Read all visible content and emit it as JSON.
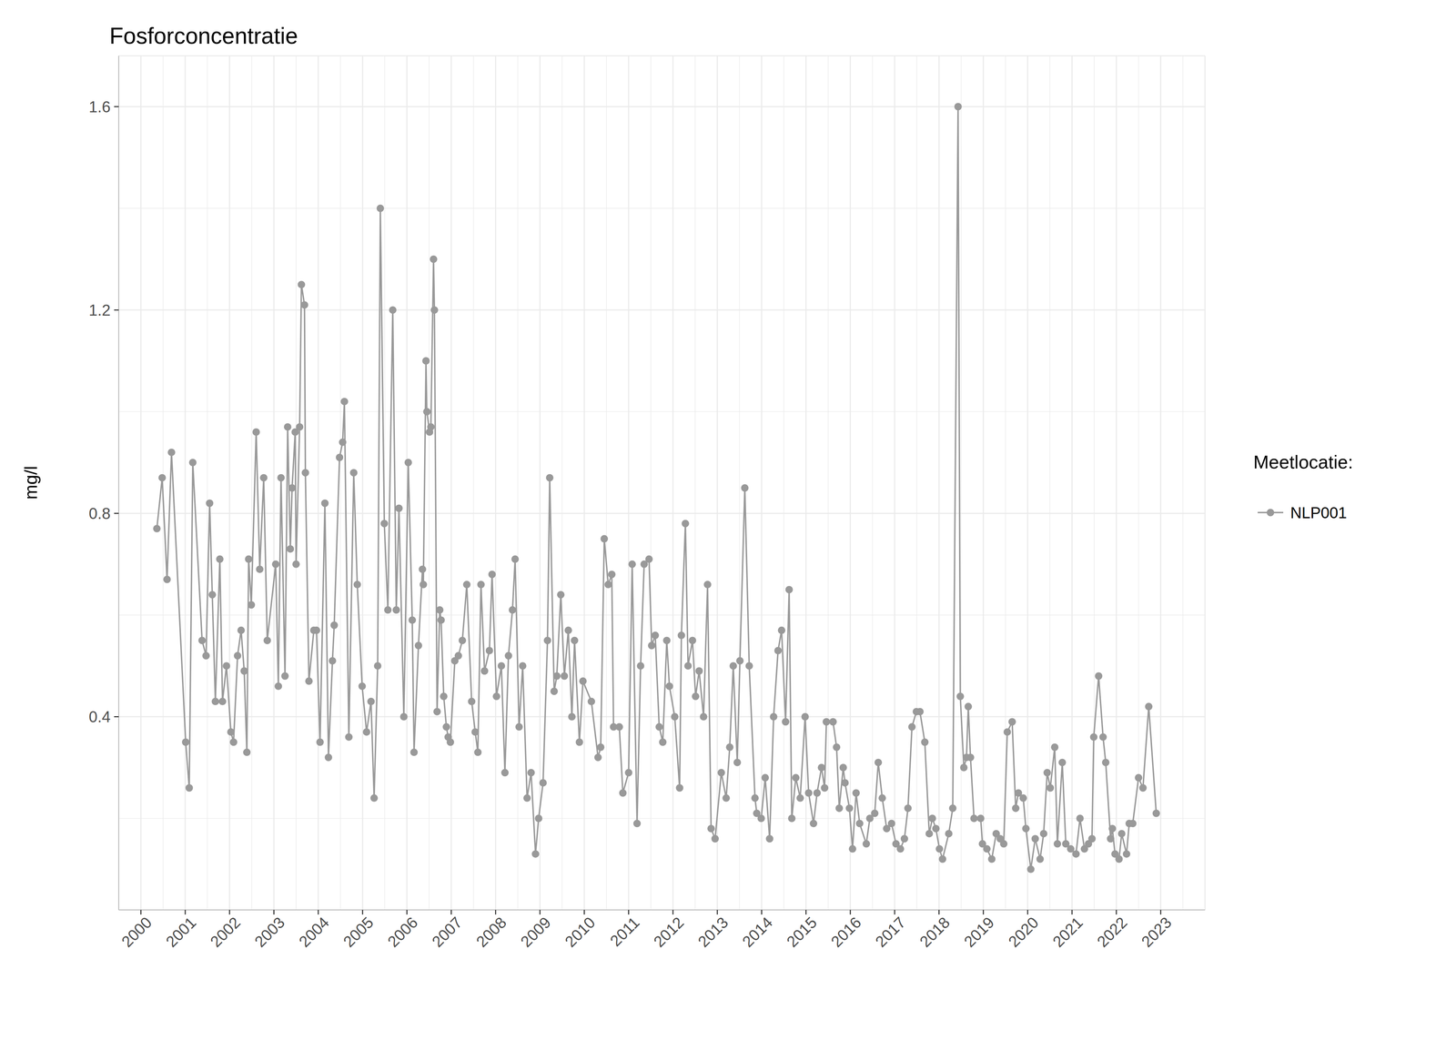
{
  "chart_data": {
    "type": "line",
    "title": "Fosforconcentratie",
    "y_label": "mg/l",
    "legend_title": "Meetlocatie:",
    "legend": "right",
    "grid": true,
    "xlim": [
      1999.5,
      2024.0
    ],
    "xticks": [
      2000,
      2001,
      2002,
      2003,
      2004,
      2005,
      2006,
      2007,
      2008,
      2009,
      2010,
      2011,
      2012,
      2013,
      2014,
      2015,
      2016,
      2017,
      2018,
      2019,
      2020,
      2021,
      2022,
      2023
    ],
    "ylim": [
      0.02,
      1.7
    ],
    "yticks": [
      0.4,
      0.8,
      1.2,
      1.6
    ],
    "x": [
      2000.36,
      2000.48,
      2000.59,
      2000.69,
      2001.01,
      2001.09,
      2001.17,
      2001.38,
      2001.47,
      2001.55,
      2001.61,
      2001.68,
      2001.78,
      2001.84,
      2001.93,
      2002.03,
      2002.09,
      2002.18,
      2002.26,
      2002.33,
      2002.39,
      2002.43,
      2002.49,
      2002.6,
      2002.68,
      2002.77,
      2002.85,
      2003.04,
      2003.1,
      2003.16,
      2003.25,
      2003.31,
      2003.37,
      2003.41,
      2003.48,
      2003.5,
      2003.58,
      2003.62,
      2003.69,
      2003.71,
      2003.79,
      2003.9,
      2003.96,
      2004.04,
      2004.15,
      2004.23,
      2004.32,
      2004.36,
      2004.48,
      2004.55,
      2004.59,
      2004.69,
      2004.8,
      2004.88,
      2004.99,
      2005.09,
      2005.19,
      2005.26,
      2005.34,
      2005.4,
      2005.49,
      2005.57,
      2005.68,
      2005.76,
      2005.82,
      2005.93,
      2006.03,
      2006.12,
      2006.16,
      2006.26,
      2006.35,
      2006.37,
      2006.43,
      2006.45,
      2006.51,
      2006.54,
      2006.6,
      2006.62,
      2006.68,
      2006.74,
      2006.77,
      2006.83,
      2006.89,
      2006.93,
      2006.98,
      2007.08,
      2007.16,
      2007.25,
      2007.35,
      2007.46,
      2007.54,
      2007.6,
      2007.67,
      2007.75,
      2007.86,
      2007.92,
      2008.02,
      2008.13,
      2008.21,
      2008.29,
      2008.38,
      2008.44,
      2008.53,
      2008.61,
      2008.71,
      2008.8,
      2008.9,
      2008.97,
      2009.07,
      2009.17,
      2009.22,
      2009.32,
      2009.38,
      2009.47,
      2009.55,
      2009.64,
      2009.72,
      2009.78,
      2009.89,
      2009.97,
      2010.16,
      2010.31,
      2010.37,
      2010.45,
      2010.54,
      2010.62,
      2010.66,
      2010.79,
      2010.87,
      2011.0,
      2011.08,
      2011.19,
      2011.27,
      2011.35,
      2011.46,
      2011.52,
      2011.6,
      2011.69,
      2011.77,
      2011.86,
      2011.92,
      2012.04,
      2012.15,
      2012.19,
      2012.28,
      2012.34,
      2012.44,
      2012.51,
      2012.59,
      2012.69,
      2012.78,
      2012.86,
      2012.95,
      2013.09,
      2013.2,
      2013.28,
      2013.36,
      2013.45,
      2013.51,
      2013.62,
      2013.72,
      2013.85,
      2013.89,
      2013.99,
      2014.08,
      2014.18,
      2014.27,
      2014.37,
      2014.45,
      2014.54,
      2014.62,
      2014.68,
      2014.77,
      2014.87,
      2014.98,
      2015.06,
      2015.17,
      2015.25,
      2015.35,
      2015.42,
      2015.46,
      2015.61,
      2015.69,
      2015.75,
      2015.84,
      2015.88,
      2015.98,
      2016.05,
      2016.13,
      2016.21,
      2016.36,
      2016.44,
      2016.55,
      2016.63,
      2016.72,
      2016.82,
      2016.93,
      2017.03,
      2017.13,
      2017.22,
      2017.3,
      2017.39,
      2017.49,
      2017.57,
      2017.68,
      2017.78,
      2017.85,
      2017.93,
      2018.01,
      2018.08,
      2018.22,
      2018.31,
      2018.43,
      2018.48,
      2018.56,
      2018.62,
      2018.66,
      2018.71,
      2018.79,
      2018.94,
      2018.98,
      2019.08,
      2019.19,
      2019.29,
      2019.38,
      2019.46,
      2019.54,
      2019.65,
      2019.73,
      2019.79,
      2019.9,
      2019.96,
      2020.07,
      2020.17,
      2020.28,
      2020.36,
      2020.44,
      2020.51,
      2020.61,
      2020.67,
      2020.78,
      2020.86,
      2020.97,
      2021.09,
      2021.18,
      2021.28,
      2021.37,
      2021.45,
      2021.49,
      2021.6,
      2021.7,
      2021.76,
      2021.87,
      2021.91,
      2021.97,
      2022.06,
      2022.12,
      2022.23,
      2022.29,
      2022.37,
      2022.5,
      2022.6,
      2022.73,
      2022.9
    ],
    "series": [
      {
        "name": "NLP001",
        "color": "#999999",
        "marker": "circle",
        "line_style": "solid",
        "values": [
          0.77,
          0.87,
          0.67,
          0.92,
          0.35,
          0.26,
          0.9,
          0.55,
          0.52,
          0.82,
          0.64,
          0.43,
          0.71,
          0.43,
          0.5,
          0.37,
          0.35,
          0.52,
          0.57,
          0.49,
          0.33,
          0.71,
          0.62,
          0.96,
          0.69,
          0.87,
          0.55,
          0.7,
          0.46,
          0.87,
          0.48,
          0.97,
          0.73,
          0.85,
          0.96,
          0.7,
          0.97,
          1.25,
          1.21,
          0.88,
          0.47,
          0.57,
          0.57,
          0.35,
          0.82,
          0.32,
          0.51,
          0.58,
          0.91,
          0.94,
          1.02,
          0.36,
          0.88,
          0.66,
          0.46,
          0.37,
          0.43,
          0.24,
          0.5,
          1.4,
          0.78,
          0.61,
          1.2,
          0.61,
          0.81,
          0.4,
          0.9,
          0.59,
          0.33,
          0.54,
          0.69,
          0.66,
          1.1,
          1.0,
          0.96,
          0.97,
          1.3,
          1.2,
          0.41,
          0.61,
          0.59,
          0.44,
          0.38,
          0.36,
          0.35,
          0.51,
          0.52,
          0.55,
          0.66,
          0.43,
          0.37,
          0.33,
          0.66,
          0.49,
          0.53,
          0.68,
          0.44,
          0.5,
          0.29,
          0.52,
          0.61,
          0.71,
          0.38,
          0.5,
          0.24,
          0.29,
          0.13,
          0.2,
          0.27,
          0.55,
          0.87,
          0.45,
          0.48,
          0.64,
          0.48,
          0.57,
          0.4,
          0.55,
          0.35,
          0.47,
          0.43,
          0.32,
          0.34,
          0.75,
          0.66,
          0.68,
          0.38,
          0.38,
          0.25,
          0.29,
          0.7,
          0.19,
          0.5,
          0.7,
          0.71,
          0.54,
          0.56,
          0.38,
          0.35,
          0.55,
          0.46,
          0.4,
          0.26,
          0.56,
          0.78,
          0.5,
          0.55,
          0.44,
          0.49,
          0.4,
          0.66,
          0.18,
          0.16,
          0.29,
          0.24,
          0.34,
          0.5,
          0.31,
          0.51,
          0.85,
          0.5,
          0.24,
          0.21,
          0.2,
          0.28,
          0.16,
          0.4,
          0.53,
          0.57,
          0.39,
          0.65,
          0.2,
          0.28,
          0.24,
          0.4,
          0.25,
          0.19,
          0.25,
          0.3,
          0.26,
          0.39,
          0.39,
          0.34,
          0.22,
          0.3,
          0.27,
          0.22,
          0.14,
          0.25,
          0.19,
          0.15,
          0.2,
          0.21,
          0.31,
          0.24,
          0.18,
          0.19,
          0.15,
          0.14,
          0.16,
          0.22,
          0.38,
          0.41,
          0.41,
          0.35,
          0.17,
          0.2,
          0.18,
          0.14,
          0.12,
          0.17,
          0.22,
          1.6,
          0.44,
          0.3,
          0.32,
          0.42,
          0.32,
          0.2,
          0.2,
          0.15,
          0.14,
          0.12,
          0.17,
          0.16,
          0.15,
          0.37,
          0.39,
          0.22,
          0.25,
          0.24,
          0.18,
          0.1,
          0.16,
          0.12,
          0.17,
          0.29,
          0.26,
          0.34,
          0.15,
          0.31,
          0.15,
          0.14,
          0.13,
          0.2,
          0.14,
          0.15,
          0.16,
          0.36,
          0.48,
          0.36,
          0.31,
          0.16,
          0.18,
          0.13,
          0.12,
          0.17,
          0.13,
          0.19,
          0.19,
          0.28,
          0.26,
          0.42,
          0.21
        ]
      }
    ]
  }
}
